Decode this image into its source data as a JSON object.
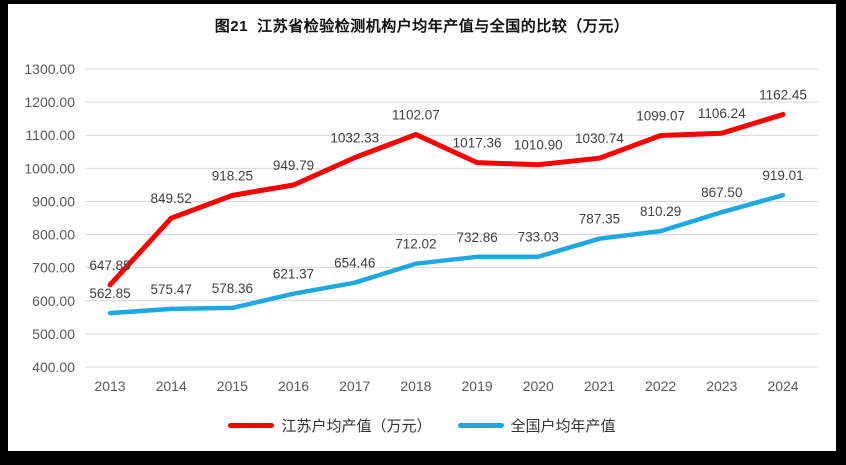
{
  "frame": {
    "background": "#000000",
    "panel_background": "#ffffff"
  },
  "chart_data": {
    "type": "line",
    "title": "图21  江苏省检验检测机构户均年产值与全国的比较（万元）",
    "categories": [
      "2013",
      "2014",
      "2015",
      "2016",
      "2017",
      "2018",
      "2019",
      "2020",
      "2021",
      "2022",
      "2023",
      "2024"
    ],
    "series": [
      {
        "name": "江苏户均产值（万元）",
        "color": "#fb0000",
        "stroke_width": 5,
        "values": [
          647.85,
          849.52,
          918.25,
          949.79,
          1032.33,
          1102.07,
          1017.36,
          1010.9,
          1030.74,
          1099.07,
          1106.24,
          1162.45
        ]
      },
      {
        "name": "全国户均年产值",
        "color": "#1ea7e0",
        "stroke_width": 4.5,
        "values": [
          562.85,
          575.47,
          578.36,
          621.37,
          654.46,
          712.02,
          732.86,
          733.03,
          787.35,
          810.29,
          867.5,
          919.01
        ]
      }
    ],
    "ylim": [
      400,
      1300
    ],
    "y_tick_step": 100,
    "y_tick_decimals": 2,
    "data_label_decimals": 2,
    "grid": "horizontal",
    "legend_position": "bottom",
    "data_labels": "above",
    "colors": {
      "gridline": "#d9d9d9",
      "tick_label": "#595959",
      "data_label": "#404040",
      "title": "#111111",
      "legend_label": "#333333"
    }
  }
}
